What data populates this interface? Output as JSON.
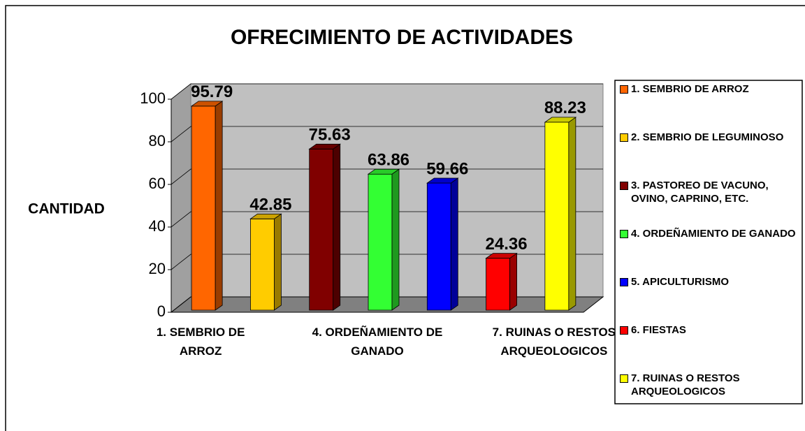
{
  "chart_data": {
    "type": "bar3d",
    "title": "OFRECIMIENTO DE ACTIVIDADES",
    "ylabel": "CANTIDAD",
    "categories": [
      "1. SEMBRIO DE ARROZ",
      "2. SEMBRIO DE LEGUMINOSO",
      "3. PASTOREO  DE VACUNO,  OVINO, CAPRINO, ETC.",
      "4. ORDEÑAMIENTO DE GANADO",
      "5. APICULTURISMO",
      "6. FIESTAS",
      "7. RUINAS O RESTOS ARQUEOLOGICOS"
    ],
    "values": [
      95.79,
      42.85,
      75.63,
      63.86,
      59.66,
      24.36,
      88.23
    ],
    "colors": [
      "#ff6600",
      "#ffcc00",
      "#800000",
      "#33ff33",
      "#0000ff",
      "#ff0000",
      "#ffff00"
    ],
    "xlabel_every": 3,
    "ylim": [
      0,
      100
    ],
    "yticks": [
      0,
      20,
      40,
      60,
      80,
      100
    ],
    "grid": true,
    "legend": "right"
  }
}
